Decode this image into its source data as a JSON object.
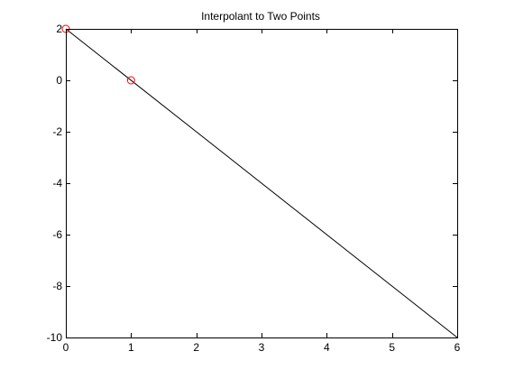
{
  "chart_data": {
    "type": "line",
    "title": "Interpolant to Two Points",
    "xlabel": "",
    "ylabel": "",
    "xlim": [
      0,
      6
    ],
    "ylim": [
      -10,
      2
    ],
    "x_ticks": [
      0,
      1,
      2,
      3,
      4,
      5,
      6
    ],
    "y_ticks": [
      2,
      0,
      -2,
      -4,
      -6,
      -8,
      -10
    ],
    "grid": false,
    "legend": "none",
    "series": [
      {
        "kind": "line",
        "x": [
          0,
          6
        ],
        "y": [
          2,
          -10
        ],
        "color": "#000000"
      },
      {
        "kind": "markers",
        "marker": "circle-open",
        "x": [
          0,
          1
        ],
        "y": [
          2,
          0
        ],
        "color": "#ff0000"
      }
    ]
  },
  "axes_color": "#000000",
  "background_color": "#ffffff"
}
